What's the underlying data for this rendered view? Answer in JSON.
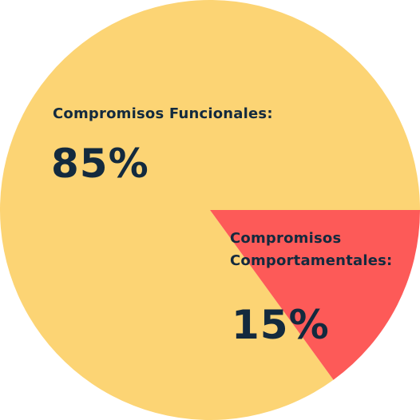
{
  "chart_data": {
    "type": "pie",
    "title": "",
    "slices": [
      {
        "label": "Compromisos Funcionales:",
        "label_lines": [
          "Compromisos Funcionales:"
        ],
        "value": 85,
        "display": "85%",
        "color": "#fcd474"
      },
      {
        "label": "Compromisos Comportamentales:",
        "label_lines": [
          "Compromisos",
          "Comportamentales:"
        ],
        "value": 15,
        "display": "15%",
        "color": "#fd5a58"
      }
    ],
    "start_angle_deg": 90,
    "direction": "clockwise",
    "text_color": "#132a3e",
    "legend": "none",
    "grid": false
  }
}
